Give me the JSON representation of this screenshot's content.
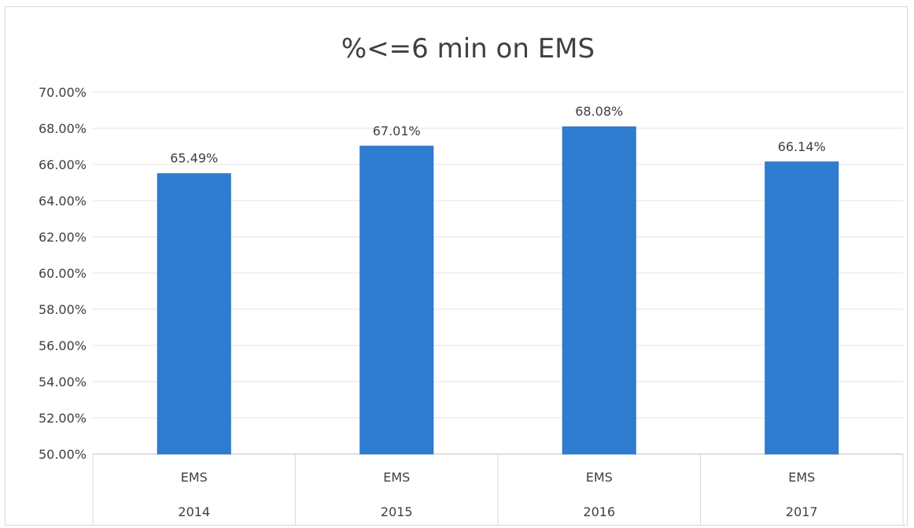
{
  "chart_data": {
    "type": "bar",
    "title": "%<=6 min on EMS",
    "xlabel": "",
    "ylabel": "",
    "categories": [
      {
        "group": "EMS",
        "year": "2014"
      },
      {
        "group": "EMS",
        "year": "2015"
      },
      {
        "group": "EMS",
        "year": "2016"
      },
      {
        "group": "EMS",
        "year": "2017"
      }
    ],
    "values": [
      65.49,
      67.01,
      68.08,
      66.14
    ],
    "data_labels": [
      "65.49%",
      "67.01%",
      "68.08%",
      "66.14%"
    ],
    "ylim": [
      50,
      70
    ],
    "y_ticks": [
      {
        "value": 50,
        "label": "50.00%"
      },
      {
        "value": 52,
        "label": "52.00%"
      },
      {
        "value": 54,
        "label": "54.00%"
      },
      {
        "value": 56,
        "label": "56.00%"
      },
      {
        "value": 58,
        "label": "58.00%"
      },
      {
        "value": 60,
        "label": "60.00%"
      },
      {
        "value": 62,
        "label": "62.00%"
      },
      {
        "value": 64,
        "label": "64.00%"
      },
      {
        "value": 66,
        "label": "66.00%"
      },
      {
        "value": 68,
        "label": "68.00%"
      },
      {
        "value": 70,
        "label": "70.00%"
      }
    ],
    "grid": true,
    "legend": "none",
    "bar_color": "#2e7dd1"
  }
}
